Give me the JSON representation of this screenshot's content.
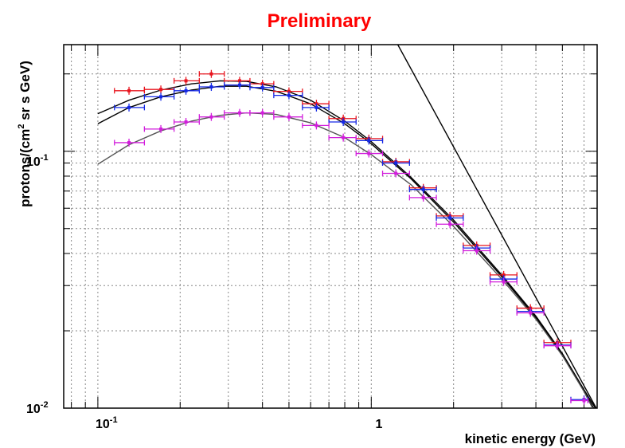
{
  "chart_data": {
    "type": "scatter",
    "title": "Preliminary",
    "xlabel": "kinetic energy (GeV)",
    "ylabel_main": "protons/(cm",
    "ylabel_sup": "2",
    "ylabel_rest": " sr s GeV)",
    "x_scale": "log",
    "y_scale": "log",
    "xlim": [
      0.075,
      6.7
    ],
    "ylim": [
      0.01,
      0.26
    ],
    "grid": true,
    "x_ticks": [
      {
        "value": 0.1,
        "base": "10",
        "exp": "-1"
      },
      {
        "value": 1,
        "base": "1",
        "exp": ""
      }
    ],
    "y_ticks": [
      {
        "value": 0.01,
        "base": "10",
        "exp": "-2"
      },
      {
        "value": 0.1,
        "base": "10",
        "exp": "-1"
      }
    ],
    "series": [
      {
        "name": "red data",
        "color": "#e8141e",
        "kind": "errorbar",
        "points": [
          {
            "x": 0.13,
            "y": 0.172,
            "xlo": 0.115,
            "xhi": 0.148
          },
          {
            "x": 0.17,
            "y": 0.174,
            "xlo": 0.148,
            "xhi": 0.19
          },
          {
            "x": 0.21,
            "y": 0.188,
            "xlo": 0.19,
            "xhi": 0.235
          },
          {
            "x": 0.26,
            "y": 0.2,
            "xlo": 0.235,
            "xhi": 0.29
          },
          {
            "x": 0.33,
            "y": 0.188,
            "xlo": 0.29,
            "xhi": 0.36
          },
          {
            "x": 0.4,
            "y": 0.183,
            "xlo": 0.36,
            "xhi": 0.44
          },
          {
            "x": 0.5,
            "y": 0.171,
            "xlo": 0.44,
            "xhi": 0.56
          },
          {
            "x": 0.63,
            "y": 0.153,
            "xlo": 0.56,
            "xhi": 0.7
          },
          {
            "x": 0.79,
            "y": 0.134,
            "xlo": 0.7,
            "xhi": 0.88
          },
          {
            "x": 0.98,
            "y": 0.112,
            "xlo": 0.88,
            "xhi": 1.1
          },
          {
            "x": 1.23,
            "y": 0.091,
            "xlo": 1.1,
            "xhi": 1.38
          },
          {
            "x": 1.55,
            "y": 0.072,
            "xlo": 1.38,
            "xhi": 1.73
          },
          {
            "x": 1.94,
            "y": 0.056,
            "xlo": 1.73,
            "xhi": 2.17
          },
          {
            "x": 2.43,
            "y": 0.043,
            "xlo": 2.17,
            "xhi": 2.72
          },
          {
            "x": 3.05,
            "y": 0.033,
            "xlo": 2.72,
            "xhi": 3.41
          },
          {
            "x": 3.82,
            "y": 0.0245,
            "xlo": 3.41,
            "xhi": 4.28
          },
          {
            "x": 4.79,
            "y": 0.018,
            "xlo": 4.28,
            "xhi": 5.37
          }
        ]
      },
      {
        "name": "blue data",
        "color": "#1428e6",
        "kind": "errorbar",
        "points": [
          {
            "x": 0.13,
            "y": 0.148,
            "xlo": 0.115,
            "xhi": 0.148
          },
          {
            "x": 0.17,
            "y": 0.163,
            "xlo": 0.148,
            "xhi": 0.19
          },
          {
            "x": 0.21,
            "y": 0.172,
            "xlo": 0.19,
            "xhi": 0.235
          },
          {
            "x": 0.26,
            "y": 0.178,
            "xlo": 0.235,
            "xhi": 0.29
          },
          {
            "x": 0.33,
            "y": 0.181,
            "xlo": 0.29,
            "xhi": 0.36
          },
          {
            "x": 0.4,
            "y": 0.177,
            "xlo": 0.36,
            "xhi": 0.44
          },
          {
            "x": 0.5,
            "y": 0.165,
            "xlo": 0.44,
            "xhi": 0.56
          },
          {
            "x": 0.63,
            "y": 0.148,
            "xlo": 0.56,
            "xhi": 0.7
          },
          {
            "x": 0.79,
            "y": 0.13,
            "xlo": 0.7,
            "xhi": 0.88
          },
          {
            "x": 0.98,
            "y": 0.11,
            "xlo": 0.88,
            "xhi": 1.1
          },
          {
            "x": 1.23,
            "y": 0.09,
            "xlo": 1.1,
            "xhi": 1.38
          },
          {
            "x": 1.55,
            "y": 0.071,
            "xlo": 1.38,
            "xhi": 1.73
          },
          {
            "x": 1.94,
            "y": 0.055,
            "xlo": 1.73,
            "xhi": 2.17
          },
          {
            "x": 2.43,
            "y": 0.042,
            "xlo": 2.17,
            "xhi": 2.72
          },
          {
            "x": 3.05,
            "y": 0.0318,
            "xlo": 2.72,
            "xhi": 3.41
          },
          {
            "x": 3.82,
            "y": 0.0238,
            "xlo": 3.41,
            "xhi": 4.28
          },
          {
            "x": 4.79,
            "y": 0.0176,
            "xlo": 4.28,
            "xhi": 5.37
          },
          {
            "x": 6.0,
            "y": 0.0108,
            "xlo": 5.37,
            "xhi": 6.2
          }
        ]
      },
      {
        "name": "magenta data",
        "color": "#d21edc",
        "kind": "errorbar",
        "points": [
          {
            "x": 0.13,
            "y": 0.108,
            "xlo": 0.115,
            "xhi": 0.148
          },
          {
            "x": 0.17,
            "y": 0.122,
            "xlo": 0.148,
            "xhi": 0.19
          },
          {
            "x": 0.21,
            "y": 0.13,
            "xlo": 0.19,
            "xhi": 0.235
          },
          {
            "x": 0.26,
            "y": 0.136,
            "xlo": 0.235,
            "xhi": 0.29
          },
          {
            "x": 0.33,
            "y": 0.141,
            "xlo": 0.29,
            "xhi": 0.36
          },
          {
            "x": 0.4,
            "y": 0.141,
            "xlo": 0.36,
            "xhi": 0.44
          },
          {
            "x": 0.5,
            "y": 0.136,
            "xlo": 0.44,
            "xhi": 0.56
          },
          {
            "x": 0.63,
            "y": 0.126,
            "xlo": 0.56,
            "xhi": 0.7
          },
          {
            "x": 0.79,
            "y": 0.113,
            "xlo": 0.7,
            "xhi": 0.88
          },
          {
            "x": 0.98,
            "y": 0.098,
            "xlo": 0.88,
            "xhi": 1.1
          },
          {
            "x": 1.23,
            "y": 0.082,
            "xlo": 1.1,
            "xhi": 1.38
          },
          {
            "x": 1.55,
            "y": 0.066,
            "xlo": 1.38,
            "xhi": 1.73
          },
          {
            "x": 1.94,
            "y": 0.052,
            "xlo": 1.73,
            "xhi": 2.17
          },
          {
            "x": 2.43,
            "y": 0.041,
            "xlo": 2.17,
            "xhi": 2.72
          },
          {
            "x": 3.05,
            "y": 0.031,
            "xlo": 2.72,
            "xhi": 3.41
          },
          {
            "x": 3.82,
            "y": 0.0235,
            "xlo": 3.41,
            "xhi": 4.28
          },
          {
            "x": 4.79,
            "y": 0.0175,
            "xlo": 4.28,
            "xhi": 5.37
          },
          {
            "x": 6.0,
            "y": 0.0107,
            "xlo": 5.37,
            "xhi": 6.2
          }
        ]
      },
      {
        "name": "fit upper",
        "color": "#000000",
        "kind": "line",
        "points": [
          {
            "x": 0.1,
            "y": 0.14
          },
          {
            "x": 0.13,
            "y": 0.158
          },
          {
            "x": 0.17,
            "y": 0.173
          },
          {
            "x": 0.22,
            "y": 0.183
          },
          {
            "x": 0.28,
            "y": 0.188
          },
          {
            "x": 0.35,
            "y": 0.187
          },
          {
            "x": 0.45,
            "y": 0.178
          },
          {
            "x": 0.6,
            "y": 0.158
          },
          {
            "x": 0.8,
            "y": 0.131
          },
          {
            "x": 1.0,
            "y": 0.109
          },
          {
            "x": 1.4,
            "y": 0.079
          },
          {
            "x": 2.0,
            "y": 0.054
          },
          {
            "x": 3.0,
            "y": 0.033
          },
          {
            "x": 4.0,
            "y": 0.0228
          },
          {
            "x": 5.0,
            "y": 0.0163
          },
          {
            "x": 6.0,
            "y": 0.0118
          },
          {
            "x": 6.6,
            "y": 0.01
          }
        ]
      },
      {
        "name": "fit middle",
        "color": "#000000",
        "kind": "line",
        "points": [
          {
            "x": 0.1,
            "y": 0.128
          },
          {
            "x": 0.13,
            "y": 0.148
          },
          {
            "x": 0.17,
            "y": 0.163
          },
          {
            "x": 0.22,
            "y": 0.173
          },
          {
            "x": 0.28,
            "y": 0.179
          },
          {
            "x": 0.35,
            "y": 0.179
          },
          {
            "x": 0.45,
            "y": 0.171
          },
          {
            "x": 0.6,
            "y": 0.153
          },
          {
            "x": 0.8,
            "y": 0.128
          },
          {
            "x": 1.0,
            "y": 0.107
          },
          {
            "x": 1.4,
            "y": 0.078
          },
          {
            "x": 2.0,
            "y": 0.053
          },
          {
            "x": 3.0,
            "y": 0.0325
          },
          {
            "x": 4.0,
            "y": 0.0225
          },
          {
            "x": 5.0,
            "y": 0.0161
          },
          {
            "x": 6.0,
            "y": 0.0117
          },
          {
            "x": 6.5,
            "y": 0.01
          }
        ]
      },
      {
        "name": "fit lower",
        "color": "#555555",
        "kind": "line",
        "points": [
          {
            "x": 0.1,
            "y": 0.089
          },
          {
            "x": 0.13,
            "y": 0.106
          },
          {
            "x": 0.17,
            "y": 0.12
          },
          {
            "x": 0.22,
            "y": 0.131
          },
          {
            "x": 0.28,
            "y": 0.138
          },
          {
            "x": 0.35,
            "y": 0.141
          },
          {
            "x": 0.45,
            "y": 0.139
          },
          {
            "x": 0.6,
            "y": 0.129
          },
          {
            "x": 0.8,
            "y": 0.113
          },
          {
            "x": 1.0,
            "y": 0.097
          },
          {
            "x": 1.4,
            "y": 0.074
          },
          {
            "x": 2.0,
            "y": 0.051
          },
          {
            "x": 3.0,
            "y": 0.0318
          },
          {
            "x": 4.0,
            "y": 0.0222
          },
          {
            "x": 5.0,
            "y": 0.016
          },
          {
            "x": 6.0,
            "y": 0.0116
          },
          {
            "x": 6.45,
            "y": 0.01
          }
        ]
      },
      {
        "name": "steep line",
        "color": "#000000",
        "kind": "line",
        "points": [
          {
            "x": 1.25,
            "y": 0.26
          },
          {
            "x": 6.65,
            "y": 0.01
          }
        ]
      }
    ]
  }
}
